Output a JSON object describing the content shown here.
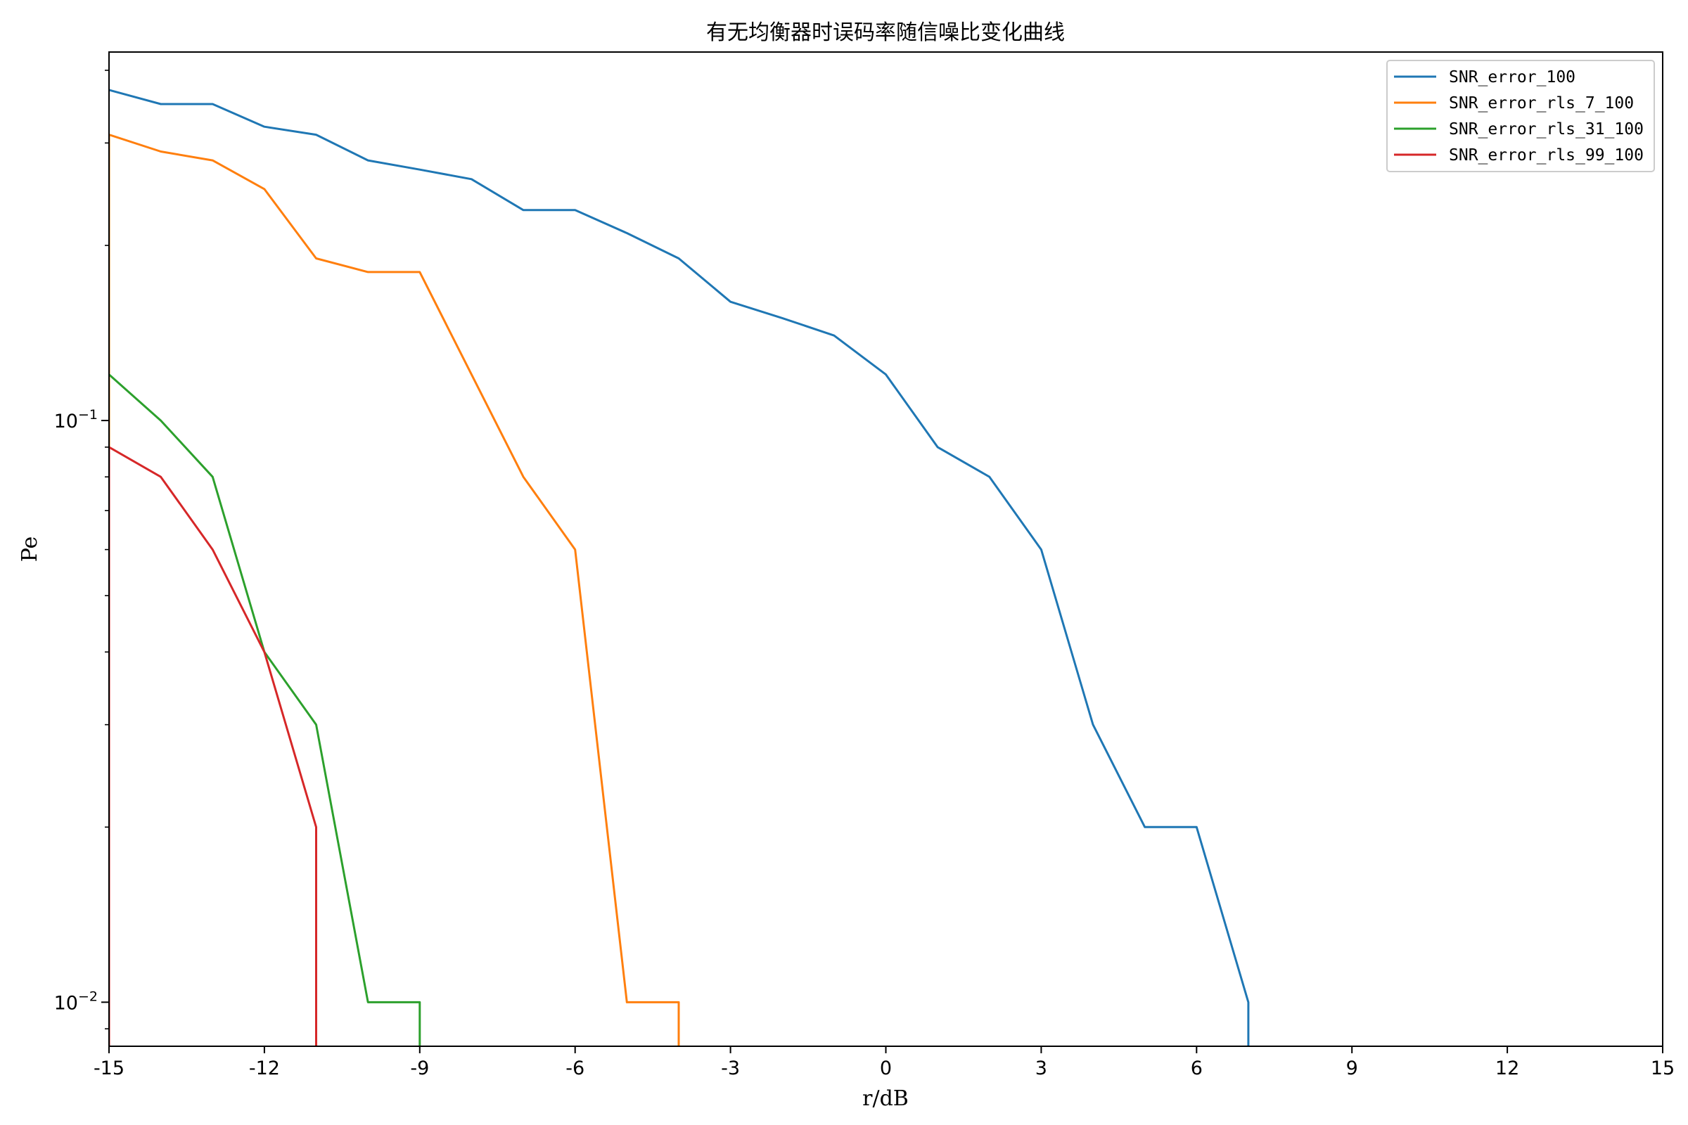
{
  "chart_data": {
    "type": "line",
    "title": "有无均衡器时误码率随信噪比变化曲线",
    "xlabel": "r/dB",
    "ylabel": "Pe",
    "xlim": [
      -15,
      15
    ],
    "ylim": [
      0.0084,
      0.43
    ],
    "yscale": "log",
    "xticks": [
      -15,
      -12,
      -9,
      -6,
      -3,
      0,
      3,
      6,
      9,
      12,
      15
    ],
    "xtick_labels": [
      "-15",
      "-12",
      "-9",
      "-6",
      "-3",
      "0",
      "3",
      "6",
      "9",
      "12",
      "15"
    ],
    "yticks_major": [
      {
        "value": 0.1,
        "base": "10",
        "exp": "−1"
      },
      {
        "value": 0.01,
        "base": "10",
        "exp": "−2"
      }
    ],
    "grid": false,
    "legend_position": "top-right",
    "series": [
      {
        "name": "SNR_error_100",
        "color": "#1f77b4",
        "points": [
          [
            -15,
            0.37
          ],
          [
            -14,
            0.35
          ],
          [
            -13,
            0.35
          ],
          [
            -12,
            0.32
          ],
          [
            -11,
            0.31
          ],
          [
            -10,
            0.28
          ],
          [
            -9,
            0.27
          ],
          [
            -8,
            0.26
          ],
          [
            -7,
            0.23
          ],
          [
            -6,
            0.23
          ],
          [
            -5,
            0.21
          ],
          [
            -4,
            0.19
          ],
          [
            -3,
            0.16
          ],
          [
            -2,
            0.15
          ],
          [
            -1,
            0.14
          ],
          [
            0,
            0.12
          ],
          [
            1,
            0.09
          ],
          [
            2,
            0.08
          ],
          [
            3,
            0.06
          ],
          [
            4,
            0.03
          ],
          [
            5,
            0.02
          ],
          [
            6,
            0.02
          ],
          [
            7,
            0.01
          ],
          [
            7,
            0.0084
          ]
        ]
      },
      {
        "name": "SNR_error_rls_7_100",
        "color": "#ff7f0e",
        "points": [
          [
            -15,
            0.0084
          ],
          [
            -15,
            0.31
          ],
          [
            -14,
            0.29
          ],
          [
            -13,
            0.28
          ],
          [
            -12,
            0.25
          ],
          [
            -11,
            0.19
          ],
          [
            -10,
            0.18
          ],
          [
            -9,
            0.18
          ],
          [
            -8,
            0.12
          ],
          [
            -7,
            0.08
          ],
          [
            -6,
            0.06
          ],
          [
            -5,
            0.01
          ],
          [
            -4,
            0.01
          ],
          [
            -4,
            0.0084
          ]
        ]
      },
      {
        "name": "SNR_error_rls_31_100",
        "color": "#2ca02c",
        "points": [
          [
            -15,
            0.12
          ],
          [
            -14,
            0.1
          ],
          [
            -13,
            0.08
          ],
          [
            -12,
            0.04
          ],
          [
            -11,
            0.03
          ],
          [
            -10,
            0.01
          ],
          [
            -9,
            0.01
          ],
          [
            -9,
            0.0084
          ]
        ]
      },
      {
        "name": "SNR_error_rls_99_100",
        "color": "#d62728",
        "points": [
          [
            -15,
            0.0084
          ],
          [
            -15,
            0.09
          ],
          [
            -14,
            0.08
          ],
          [
            -13,
            0.06
          ],
          [
            -12,
            0.04
          ],
          [
            -11,
            0.02
          ],
          [
            -11,
            0.0084
          ]
        ]
      }
    ]
  }
}
